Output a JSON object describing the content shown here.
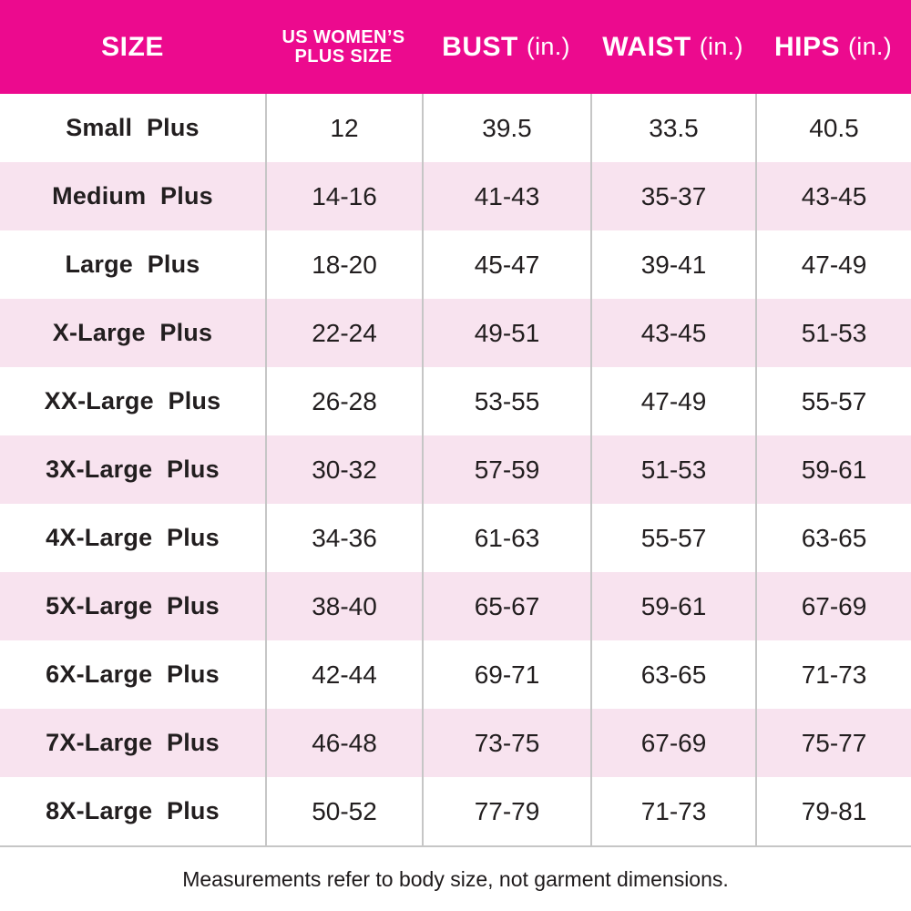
{
  "chart_data": {
    "type": "table",
    "columns": [
      "SIZE",
      "US WOMEN’S PLUS SIZE",
      "BUST (in.)",
      "WAIST (in.)",
      "HIPS (in.)"
    ],
    "rows": [
      [
        "Small Plus",
        "12",
        "39.5",
        "33.5",
        "40.5"
      ],
      [
        "Medium Plus",
        "14-16",
        "41-43",
        "35-37",
        "43-45"
      ],
      [
        "Large Plus",
        "18-20",
        "45-47",
        "39-41",
        "47-49"
      ],
      [
        "X-Large Plus",
        "22-24",
        "49-51",
        "43-45",
        "51-53"
      ],
      [
        "XX-Large Plus",
        "26-28",
        "53-55",
        "47-49",
        "55-57"
      ],
      [
        "3X-Large Plus",
        "30-32",
        "57-59",
        "51-53",
        "59-61"
      ],
      [
        "4X-Large Plus",
        "34-36",
        "61-63",
        "55-57",
        "63-65"
      ],
      [
        "5X-Large Plus",
        "38-40",
        "65-67",
        "59-61",
        "67-69"
      ],
      [
        "6X-Large Plus",
        "42-44",
        "69-71",
        "63-65",
        "71-73"
      ],
      [
        "7X-Large Plus",
        "46-48",
        "73-75",
        "67-69",
        "75-77"
      ],
      [
        "8X-Large Plus",
        "50-52",
        "77-79",
        "71-73",
        "79-81"
      ]
    ],
    "footnote": "Measurements refer to body size, not garment dimensions."
  },
  "header": {
    "size": "SIZE",
    "plus_line1": "US WOMEN’S",
    "plus_line2": "PLUS SIZE",
    "bust": "BUST",
    "bust_unit": "(in.)",
    "waist": "WAIST",
    "waist_unit": "(in.)",
    "hips": "HIPS",
    "hips_unit": "(in.)"
  },
  "footer": {
    "note": "Measurements refer to body size, not garment dimensions."
  },
  "colors": {
    "header_bg": "#EC0A8E",
    "header_text": "#FFFFFF",
    "row_bg": "#FFFFFF",
    "row_alt_bg": "#F8E3EF",
    "divider": "#C6C6C6",
    "text": "#221E1F"
  }
}
